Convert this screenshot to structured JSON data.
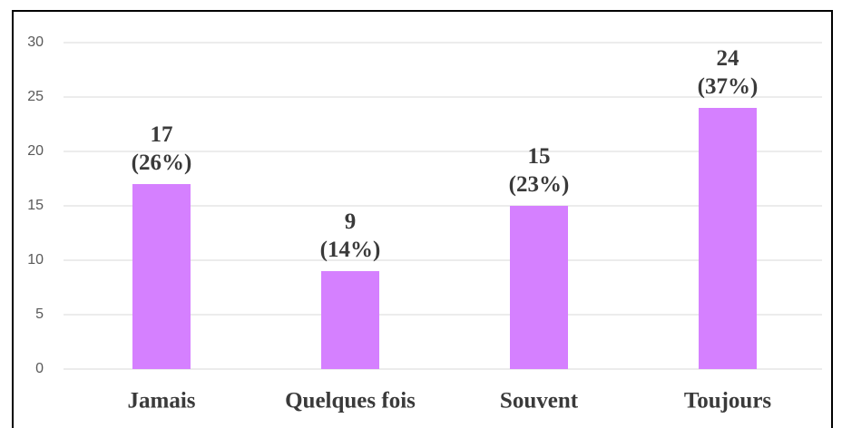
{
  "chart_data": {
    "type": "bar",
    "categories": [
      "Jamais",
      "Quelques fois",
      "Souvent",
      "Toujours"
    ],
    "values": [
      17,
      9,
      15,
      24
    ],
    "value_labels": [
      "17\n(26%)",
      "9\n(14%)",
      "15\n(23%)",
      "24\n(37%)"
    ],
    "color": "#d580ff",
    "ylim": [
      0,
      30
    ],
    "yticks": [
      0,
      5,
      10,
      15,
      20,
      25,
      30
    ],
    "grid": true
  }
}
